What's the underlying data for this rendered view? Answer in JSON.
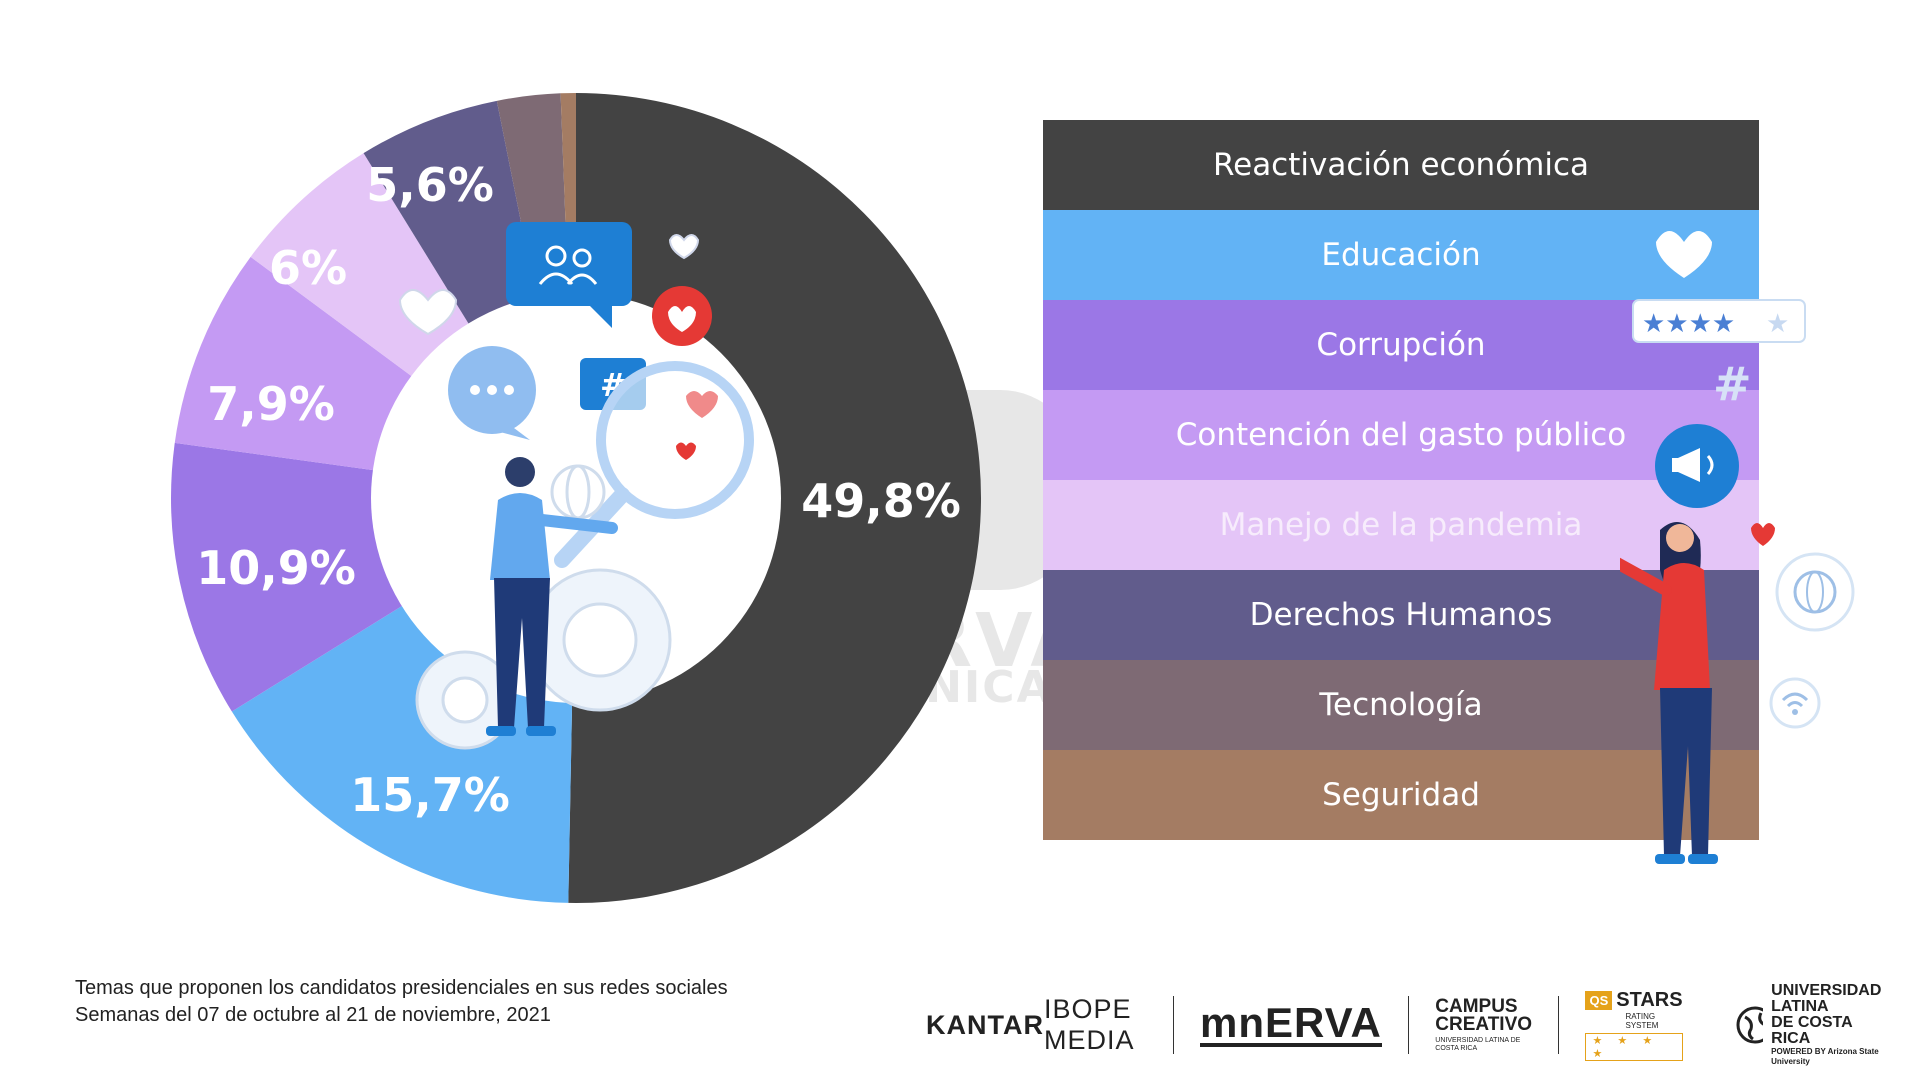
{
  "chart_data": {
    "type": "pie",
    "variant": "donut",
    "categories": [
      "Reactivación económica",
      "Educación",
      "Corrupción",
      "Contención del gasto público",
      "Manejo de la pandemia",
      "Derechos Humanos",
      "Tecnología",
      "Seguridad"
    ],
    "values": [
      49.8,
      15.7,
      10.9,
      7.9,
      6.0,
      5.6,
      2.5,
      0.6
    ],
    "value_labels": [
      "49,8%",
      "15,7%",
      "10,9%",
      "7,9%",
      "6%",
      "5,6%",
      "",
      ""
    ],
    "colors": [
      "#434343",
      "#62b3f5",
      "#9b77e6",
      "#c49af3",
      "#e4c5f7",
      "#615c8c",
      "#7e6a74",
      "#a47c63"
    ],
    "legend_text_colors": [
      "#ffffff",
      "#ffffff",
      "#ffffff",
      "#ffffff",
      "#f7ecfc",
      "#ffffff",
      "#ffffff",
      "#ffffff"
    ],
    "legend_placement": "right"
  },
  "watermark": {
    "line1": "OBSERVATORIO",
    "line2": "DE COMUNICACIÓN DIGITAL"
  },
  "caption": {
    "line1": "Temas que proponen los candidatos presidenciales en sus redes sociales",
    "line2": "Semanas del 07 de octubre al 21 de noviembre, 2021"
  },
  "logos": {
    "kantar_bold": "KANTAR",
    "kantar_rest": " IBOPE MEDIA",
    "minerva": "mnERVA",
    "campus_line1": "CAMPUS",
    "campus_line2": "CREATIVO",
    "campus_small": "UNIVERSIDAD LATINA DE COSTA RICA",
    "qs_badge": "QS",
    "qs_title": "STARS",
    "qs_small": "RATING SYSTEM",
    "qs_stars": "★ ★ ★ ★",
    "ulatina_line1": "UNIVERSIDAD LATINA",
    "ulatina_line2": "DE COSTA RICA",
    "ulatina_small": "POWERED BY Arizona State University"
  },
  "icons": [
    "people-chat-icon",
    "heart-icon",
    "chat-dots-icon",
    "hashtag-icon",
    "magnifier-icon",
    "globe-icon",
    "gear-icon",
    "star-rating-icon",
    "megaphone-icon",
    "wifi-icon"
  ]
}
